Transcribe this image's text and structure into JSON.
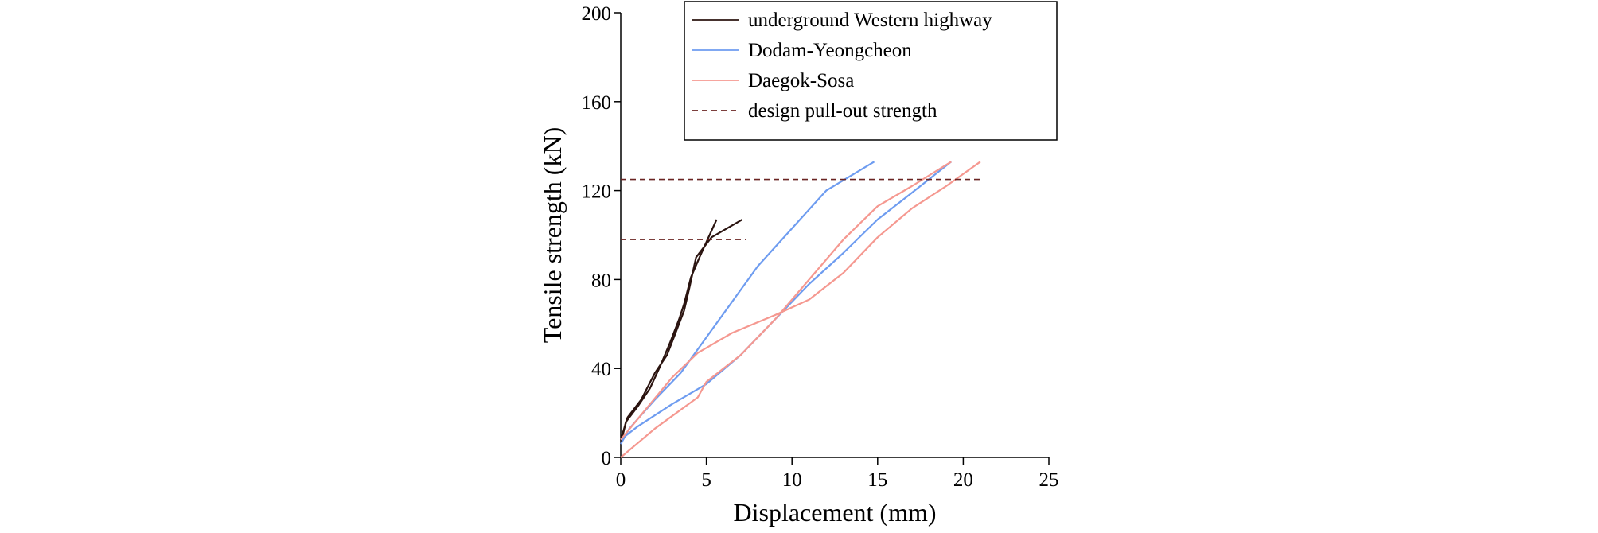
{
  "chart_data": {
    "type": "line",
    "title": "",
    "xlabel": "Displacement (mm)",
    "ylabel": "Tensile strength (kN)",
    "xlim": [
      0,
      25
    ],
    "ylim": [
      0,
      200
    ],
    "xticks": [
      0,
      5,
      10,
      15,
      20,
      25
    ],
    "yticks": [
      0,
      40,
      80,
      120,
      160,
      200
    ],
    "grid": false,
    "legend_position": "top-right",
    "legend": [
      {
        "label": "underground Western highway",
        "color": "#2b1410",
        "dash": "solid"
      },
      {
        "label": "Dodam-Yeongcheon",
        "color": "#6e9cf0",
        "dash": "solid"
      },
      {
        "label": "Daegok-Sosa",
        "color": "#f59890",
        "dash": "solid"
      },
      {
        "label": "design pull-out strength",
        "color": "#6a2422",
        "dash": "dashed"
      }
    ],
    "series": [
      {
        "group": "underground Western highway",
        "color": "#2b1410",
        "points": [
          [
            0,
            6
          ],
          [
            0.3,
            16
          ],
          [
            1,
            23
          ],
          [
            1.7,
            31
          ],
          [
            2.3,
            41
          ],
          [
            2.9,
            52
          ],
          [
            3.4,
            62
          ],
          [
            3.7,
            69
          ],
          [
            4.1,
            81
          ],
          [
            4.6,
            90
          ],
          [
            5.6,
            107
          ]
        ]
      },
      {
        "group": "underground Western highway",
        "color": "#2b1410",
        "points": [
          [
            0,
            8
          ],
          [
            0.4,
            18
          ],
          [
            1.2,
            26
          ],
          [
            2,
            38
          ],
          [
            2.7,
            46
          ],
          [
            3.2,
            56
          ],
          [
            3.7,
            66
          ],
          [
            4,
            76
          ],
          [
            4.4,
            90
          ],
          [
            5.3,
            99
          ],
          [
            7.1,
            107
          ]
        ]
      },
      {
        "group": "Dodam-Yeongcheon",
        "color": "#6e9cf0",
        "points": [
          [
            0,
            6
          ],
          [
            0.5,
            13
          ],
          [
            2,
            26
          ],
          [
            3.5,
            38
          ],
          [
            5,
            54
          ],
          [
            6.5,
            70
          ],
          [
            8,
            86
          ],
          [
            10,
            103
          ],
          [
            12,
            120
          ],
          [
            14.8,
            133
          ]
        ]
      },
      {
        "group": "Dodam-Yeongcheon",
        "color": "#6e9cf0",
        "points": [
          [
            0,
            8
          ],
          [
            1,
            14
          ],
          [
            3,
            24
          ],
          [
            5,
            33
          ],
          [
            7,
            46
          ],
          [
            9,
            62
          ],
          [
            11,
            78
          ],
          [
            13,
            92
          ],
          [
            15,
            107
          ],
          [
            17,
            119
          ],
          [
            19.3,
            133
          ]
        ]
      },
      {
        "group": "Daegok-Sosa",
        "color": "#f59890",
        "points": [
          [
            0,
            0
          ],
          [
            2,
            13
          ],
          [
            4.5,
            27
          ],
          [
            5,
            34
          ],
          [
            7,
            46
          ],
          [
            9,
            62
          ],
          [
            11,
            80
          ],
          [
            13,
            98
          ],
          [
            15,
            113
          ],
          [
            17,
            122
          ],
          [
            19.3,
            133
          ]
        ]
      },
      {
        "group": "Daegok-Sosa",
        "color": "#f59890",
        "points": [
          [
            0,
            8
          ],
          [
            1.5,
            22
          ],
          [
            3,
            36
          ],
          [
            4.5,
            47
          ],
          [
            6.5,
            56
          ],
          [
            9,
            64
          ],
          [
            11,
            71
          ],
          [
            13,
            83
          ],
          [
            15,
            99
          ],
          [
            17,
            112
          ],
          [
            19,
            122
          ],
          [
            21,
            133
          ]
        ]
      },
      {
        "group": "design pull-out strength",
        "color": "#6a2422",
        "dash": "dashed",
        "points": [
          [
            0,
            98
          ],
          [
            7.3,
            98
          ]
        ]
      },
      {
        "group": "design pull-out strength",
        "color": "#6a2422",
        "dash": "dashed",
        "points": [
          [
            0,
            125
          ],
          [
            21.2,
            125
          ]
        ]
      }
    ]
  }
}
